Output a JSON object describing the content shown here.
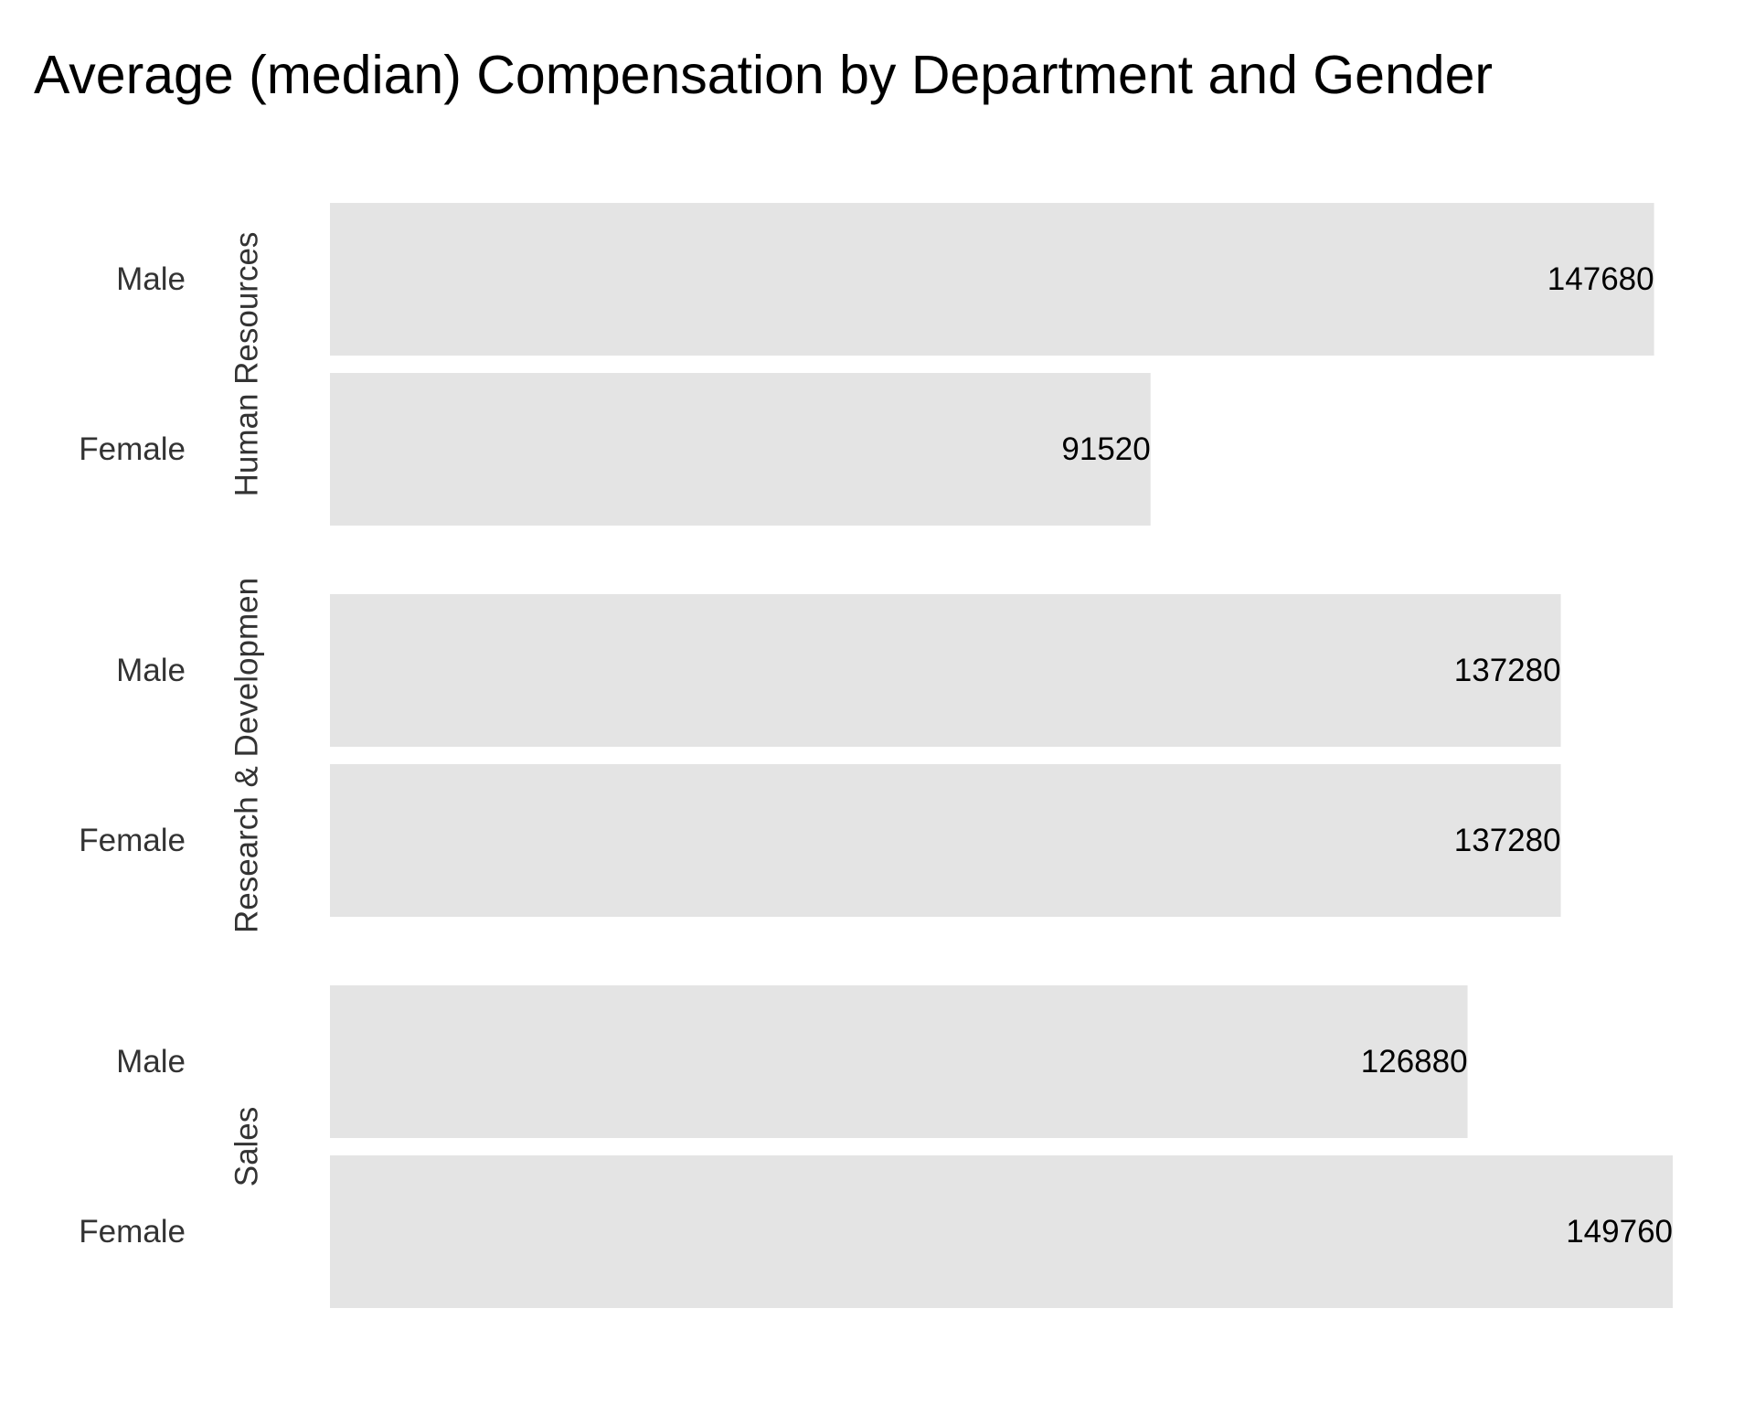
{
  "chart_data": {
    "type": "bar",
    "orientation": "horizontal",
    "title": "Average (median) Compensation by Department and Gender",
    "xlabel": "",
    "ylabel": "",
    "grid": false,
    "legend": "none",
    "bar_color": "#e4e4e4",
    "groups": [
      {
        "name": "Human Resources",
        "bars": [
          {
            "category": "Male",
            "value": 147680,
            "label": "147680"
          },
          {
            "category": "Female",
            "value": 91520,
            "label": "91520"
          }
        ]
      },
      {
        "name": "Research & Developmen",
        "bars": [
          {
            "category": "Male",
            "value": 137280,
            "label": "137280"
          },
          {
            "category": "Female",
            "value": 137280,
            "label": "137280"
          }
        ]
      },
      {
        "name": "Sales",
        "bars": [
          {
            "category": "Male",
            "value": 126880,
            "label": "126880"
          },
          {
            "category": "Female",
            "value": 149760,
            "label": "149760"
          }
        ]
      }
    ]
  }
}
